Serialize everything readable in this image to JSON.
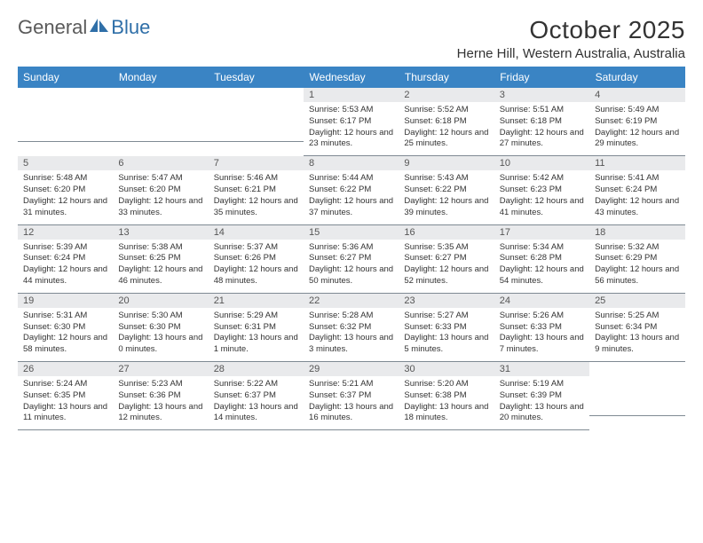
{
  "logo": {
    "text1": "General",
    "text2": "Blue"
  },
  "title": "October 2025",
  "location": "Herne Hill, Western Australia, Australia",
  "colors": {
    "header_bg": "#3a84c4",
    "header_text": "#ffffff",
    "daynum_bg": "#e9eaec",
    "text": "#333333",
    "logo_gray": "#5a5a5a",
    "logo_blue": "#2f6fa8",
    "rule": "#7f8a93"
  },
  "day_names": [
    "Sunday",
    "Monday",
    "Tuesday",
    "Wednesday",
    "Thursday",
    "Friday",
    "Saturday"
  ],
  "weeks": [
    [
      {
        "n": "",
        "sr": "",
        "ss": "",
        "dl": ""
      },
      {
        "n": "",
        "sr": "",
        "ss": "",
        "dl": ""
      },
      {
        "n": "",
        "sr": "",
        "ss": "",
        "dl": ""
      },
      {
        "n": "1",
        "sr": "5:53 AM",
        "ss": "6:17 PM",
        "dl": "12 hours and 23 minutes."
      },
      {
        "n": "2",
        "sr": "5:52 AM",
        "ss": "6:18 PM",
        "dl": "12 hours and 25 minutes."
      },
      {
        "n": "3",
        "sr": "5:51 AM",
        "ss": "6:18 PM",
        "dl": "12 hours and 27 minutes."
      },
      {
        "n": "4",
        "sr": "5:49 AM",
        "ss": "6:19 PM",
        "dl": "12 hours and 29 minutes."
      }
    ],
    [
      {
        "n": "5",
        "sr": "5:48 AM",
        "ss": "6:20 PM",
        "dl": "12 hours and 31 minutes."
      },
      {
        "n": "6",
        "sr": "5:47 AM",
        "ss": "6:20 PM",
        "dl": "12 hours and 33 minutes."
      },
      {
        "n": "7",
        "sr": "5:46 AM",
        "ss": "6:21 PM",
        "dl": "12 hours and 35 minutes."
      },
      {
        "n": "8",
        "sr": "5:44 AM",
        "ss": "6:22 PM",
        "dl": "12 hours and 37 minutes."
      },
      {
        "n": "9",
        "sr": "5:43 AM",
        "ss": "6:22 PM",
        "dl": "12 hours and 39 minutes."
      },
      {
        "n": "10",
        "sr": "5:42 AM",
        "ss": "6:23 PM",
        "dl": "12 hours and 41 minutes."
      },
      {
        "n": "11",
        "sr": "5:41 AM",
        "ss": "6:24 PM",
        "dl": "12 hours and 43 minutes."
      }
    ],
    [
      {
        "n": "12",
        "sr": "5:39 AM",
        "ss": "6:24 PM",
        "dl": "12 hours and 44 minutes."
      },
      {
        "n": "13",
        "sr": "5:38 AM",
        "ss": "6:25 PM",
        "dl": "12 hours and 46 minutes."
      },
      {
        "n": "14",
        "sr": "5:37 AM",
        "ss": "6:26 PM",
        "dl": "12 hours and 48 minutes."
      },
      {
        "n": "15",
        "sr": "5:36 AM",
        "ss": "6:27 PM",
        "dl": "12 hours and 50 minutes."
      },
      {
        "n": "16",
        "sr": "5:35 AM",
        "ss": "6:27 PM",
        "dl": "12 hours and 52 minutes."
      },
      {
        "n": "17",
        "sr": "5:34 AM",
        "ss": "6:28 PM",
        "dl": "12 hours and 54 minutes."
      },
      {
        "n": "18",
        "sr": "5:32 AM",
        "ss": "6:29 PM",
        "dl": "12 hours and 56 minutes."
      }
    ],
    [
      {
        "n": "19",
        "sr": "5:31 AM",
        "ss": "6:30 PM",
        "dl": "12 hours and 58 minutes."
      },
      {
        "n": "20",
        "sr": "5:30 AM",
        "ss": "6:30 PM",
        "dl": "13 hours and 0 minutes."
      },
      {
        "n": "21",
        "sr": "5:29 AM",
        "ss": "6:31 PM",
        "dl": "13 hours and 1 minute."
      },
      {
        "n": "22",
        "sr": "5:28 AM",
        "ss": "6:32 PM",
        "dl": "13 hours and 3 minutes."
      },
      {
        "n": "23",
        "sr": "5:27 AM",
        "ss": "6:33 PM",
        "dl": "13 hours and 5 minutes."
      },
      {
        "n": "24",
        "sr": "5:26 AM",
        "ss": "6:33 PM",
        "dl": "13 hours and 7 minutes."
      },
      {
        "n": "25",
        "sr": "5:25 AM",
        "ss": "6:34 PM",
        "dl": "13 hours and 9 minutes."
      }
    ],
    [
      {
        "n": "26",
        "sr": "5:24 AM",
        "ss": "6:35 PM",
        "dl": "13 hours and 11 minutes."
      },
      {
        "n": "27",
        "sr": "5:23 AM",
        "ss": "6:36 PM",
        "dl": "13 hours and 12 minutes."
      },
      {
        "n": "28",
        "sr": "5:22 AM",
        "ss": "6:37 PM",
        "dl": "13 hours and 14 minutes."
      },
      {
        "n": "29",
        "sr": "5:21 AM",
        "ss": "6:37 PM",
        "dl": "13 hours and 16 minutes."
      },
      {
        "n": "30",
        "sr": "5:20 AM",
        "ss": "6:38 PM",
        "dl": "13 hours and 18 minutes."
      },
      {
        "n": "31",
        "sr": "5:19 AM",
        "ss": "6:39 PM",
        "dl": "13 hours and 20 minutes."
      },
      {
        "n": "",
        "sr": "",
        "ss": "",
        "dl": ""
      }
    ]
  ],
  "labels": {
    "sunrise": "Sunrise:",
    "sunset": "Sunset:",
    "daylight": "Daylight:"
  }
}
